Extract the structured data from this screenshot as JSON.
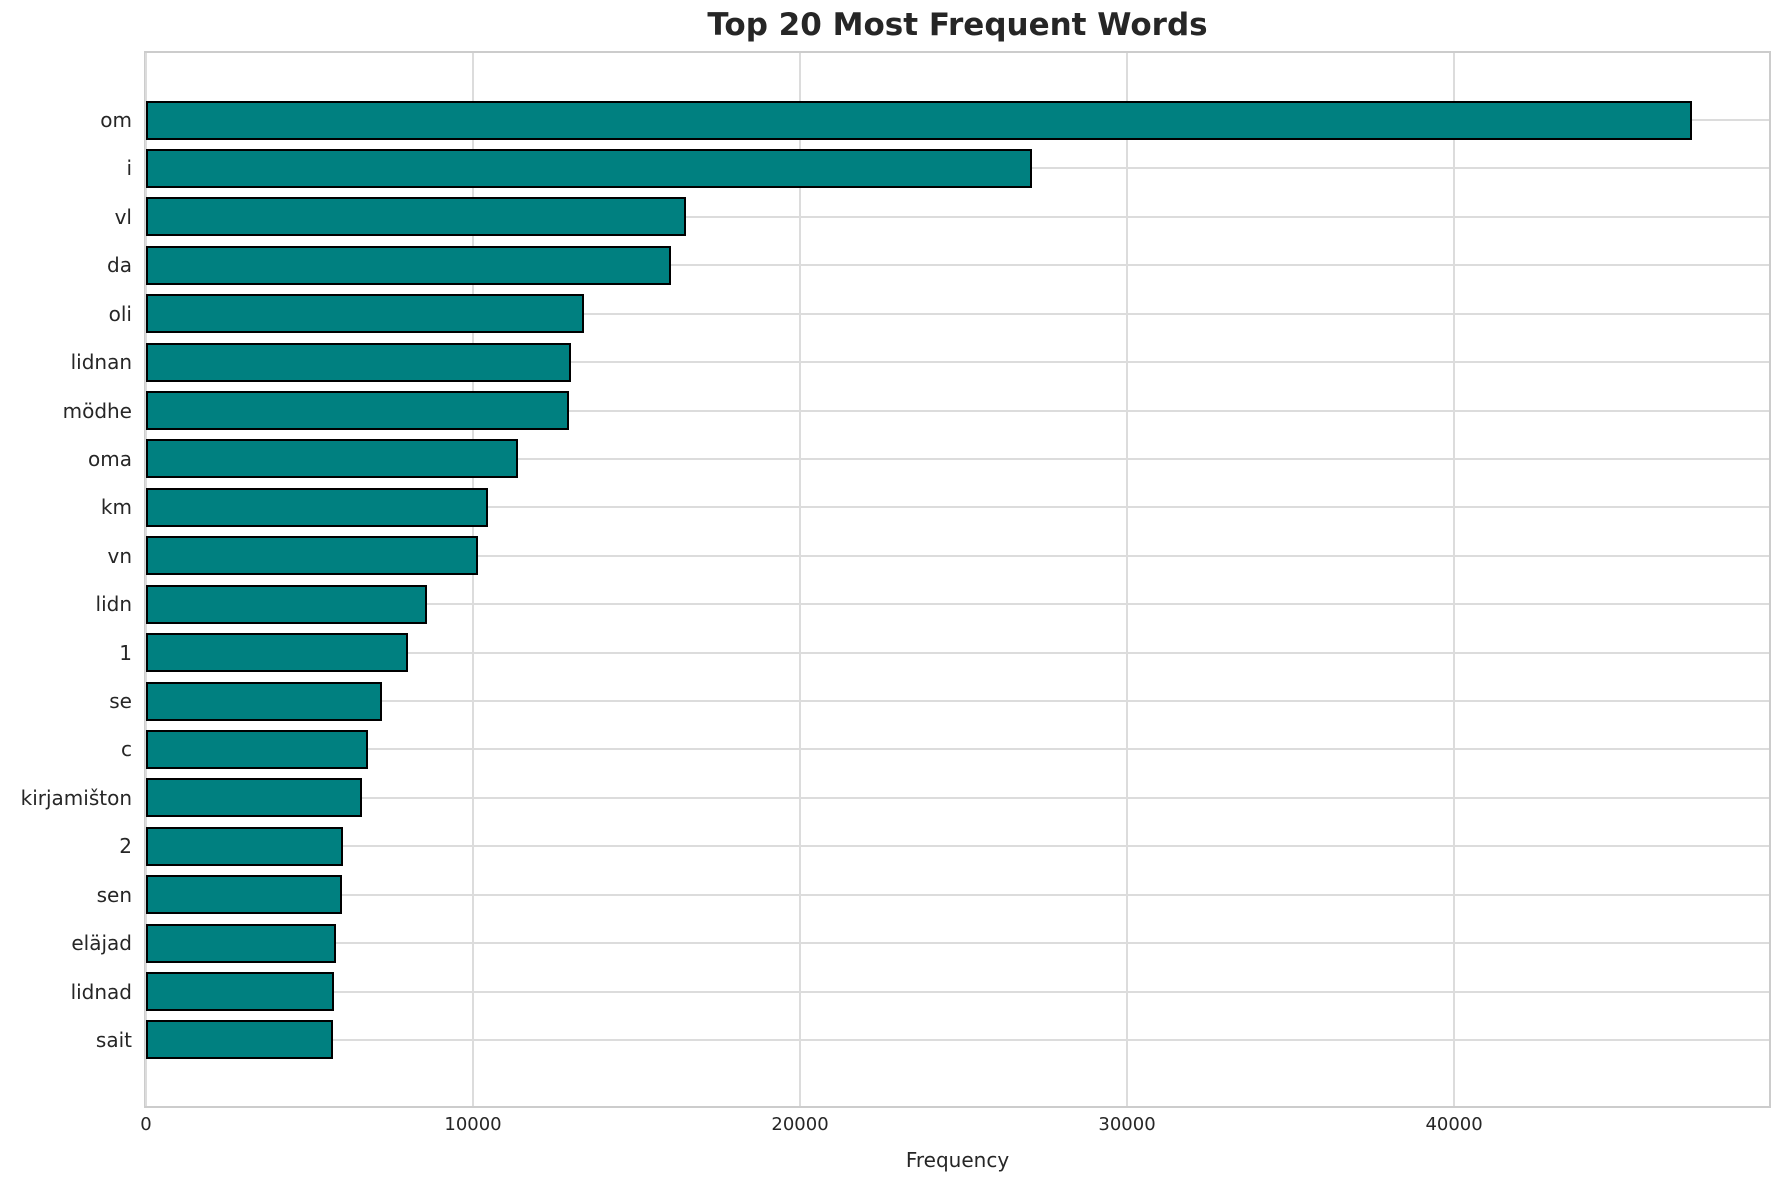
{
  "title": "Top 20 Most Frequent Words",
  "colors": {
    "bar": "#008080",
    "bar_edge": "#000000",
    "grid": "#dcdcdc",
    "spine": "#cccccc",
    "text": "#262626",
    "background": "#ffffff"
  },
  "chart_data": {
    "type": "bar",
    "orientation": "horizontal",
    "title": "Top 20 Most Frequent Words",
    "xlabel": "Frequency",
    "ylabel": "",
    "categories": [
      "om",
      "i",
      "vl",
      "da",
      "oli",
      "lidnan",
      "mödhe",
      "oma",
      "km",
      "vn",
      "lidn",
      "1",
      "se",
      "c",
      "kirjamišton",
      "2",
      "sen",
      "eläjad",
      "lidnad",
      "sait"
    ],
    "values": [
      47280,
      27100,
      16500,
      16050,
      13400,
      13000,
      12950,
      11390,
      10470,
      10160,
      8580,
      8010,
      7220,
      6800,
      6610,
      6030,
      5990,
      5810,
      5740,
      5720
    ],
    "x_ticks": [
      0,
      10000,
      20000,
      30000,
      40000
    ],
    "x_tick_labels": [
      "0",
      "10000",
      "20000",
      "30000",
      "40000"
    ],
    "xlim": [
      0,
      49630
    ],
    "grid": true,
    "legend": false,
    "bar_color": "#008080",
    "bar_edge_color": "#000000"
  }
}
